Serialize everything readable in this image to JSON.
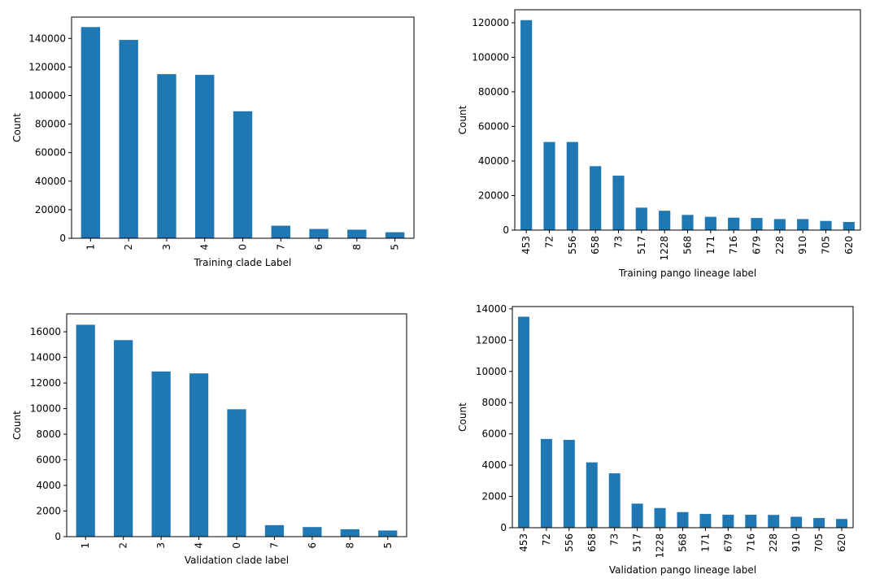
{
  "chart_data": [
    {
      "type": "bar",
      "title": "",
      "xlabel": "Training clade Label",
      "ylabel": "Count",
      "categories": [
        "1",
        "2",
        "3",
        "4",
        "0",
        "7",
        "6",
        "8",
        "5"
      ],
      "values": [
        148000,
        139000,
        115000,
        114500,
        89000,
        8800,
        6500,
        6000,
        4200
      ],
      "ylim": [
        0,
        155000
      ],
      "yticks": [
        0,
        20000,
        40000,
        60000,
        80000,
        100000,
        120000,
        140000
      ],
      "bar_color": "#1f77b4",
      "grid": false
    },
    {
      "type": "bar",
      "title": "",
      "xlabel": "Training pango lineage label",
      "ylabel": "Count",
      "categories": [
        "453",
        "72",
        "556",
        "658",
        "73",
        "517",
        "1228",
        "568",
        "171",
        "716",
        "679",
        "228",
        "910",
        "705",
        "620"
      ],
      "values": [
        121500,
        51000,
        51000,
        37000,
        31500,
        13000,
        11200,
        8800,
        7700,
        7200,
        7000,
        6400,
        6400,
        5300,
        4700
      ],
      "ylim": [
        0,
        127500
      ],
      "yticks": [
        0,
        20000,
        40000,
        60000,
        80000,
        100000,
        120000
      ],
      "bar_color": "#1f77b4",
      "grid": false
    },
    {
      "type": "bar",
      "title": "",
      "xlabel": "Validation clade label",
      "ylabel": "Count",
      "categories": [
        "1",
        "2",
        "3",
        "4",
        "0",
        "7",
        "6",
        "8",
        "5"
      ],
      "values": [
        16550,
        15350,
        12900,
        12750,
        9950,
        900,
        750,
        580,
        480
      ],
      "ylim": [
        0,
        17400
      ],
      "yticks": [
        0,
        2000,
        4000,
        6000,
        8000,
        10000,
        12000,
        14000,
        16000
      ],
      "bar_color": "#1f77b4",
      "grid": false
    },
    {
      "type": "bar",
      "title": "",
      "xlabel": "Validation pango lineage label",
      "ylabel": "Count",
      "categories": [
        "453",
        "72",
        "556",
        "658",
        "73",
        "517",
        "1228",
        "568",
        "171",
        "679",
        "716",
        "228",
        "910",
        "705",
        "620"
      ],
      "values": [
        13500,
        5680,
        5620,
        4180,
        3480,
        1540,
        1260,
        1000,
        880,
        830,
        830,
        820,
        700,
        620,
        560
      ],
      "ylim": [
        0,
        14150
      ],
      "yticks": [
        0,
        2000,
        4000,
        6000,
        8000,
        10000,
        12000,
        14000
      ],
      "bar_color": "#1f77b4",
      "grid": false
    }
  ]
}
